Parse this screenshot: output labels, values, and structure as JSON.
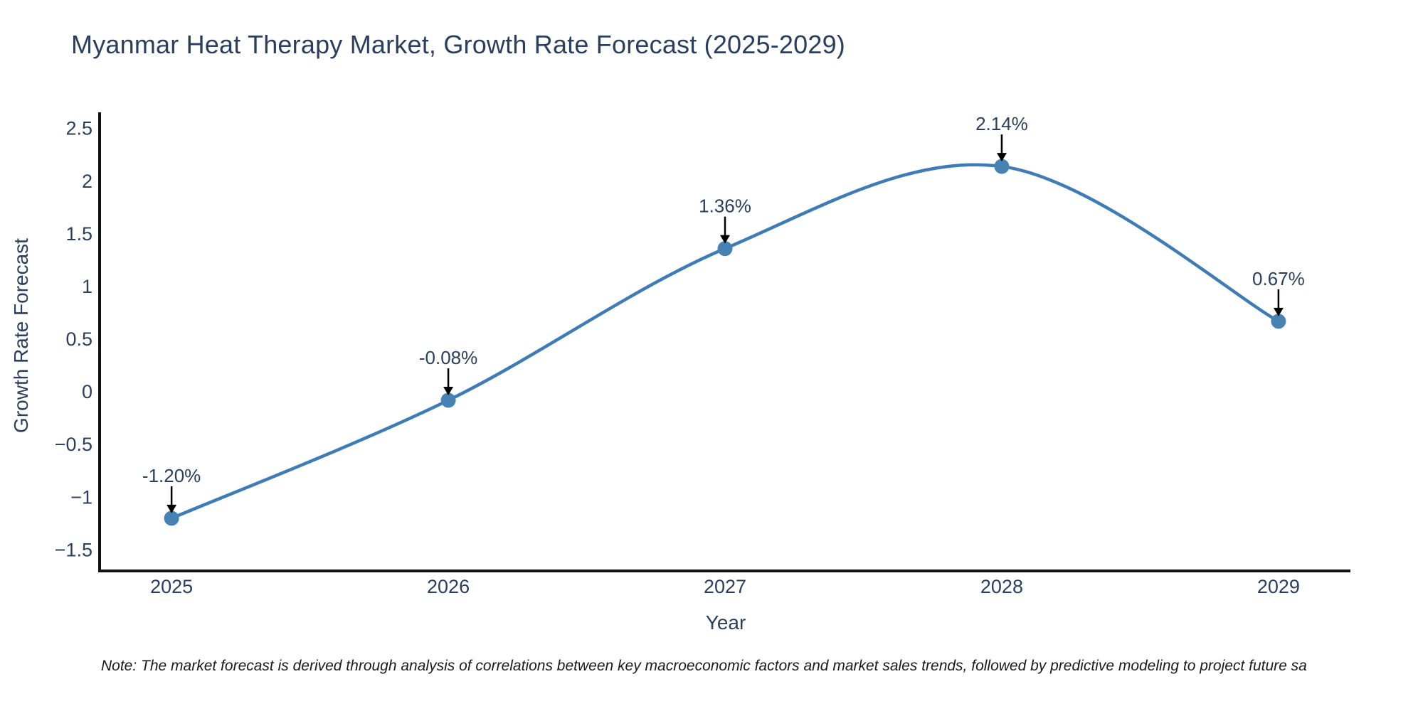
{
  "footnote": "Note: The market forecast is derived through analysis of correlations between key macroeconomic factors and market sales trends, followed by predictive modeling to project future sa",
  "chart_data": {
    "type": "line",
    "title": "Myanmar Heat Therapy Market, Growth Rate Forecast (2025-2029)",
    "xlabel": "Year",
    "ylabel": "Growth Rate Forecast",
    "x": [
      2025,
      2026,
      2027,
      2028,
      2029
    ],
    "x_tick_labels": [
      "2025",
      "2026",
      "2027",
      "2028",
      "2029"
    ],
    "series": [
      {
        "name": "Growth Rate Forecast",
        "values": [
          -1.2,
          -0.08,
          1.36,
          2.14,
          0.67
        ]
      }
    ],
    "point_labels": [
      "-1.20%",
      "-0.08%",
      "1.36%",
      "2.14%",
      "0.67%"
    ],
    "y_ticks": [
      -1.5,
      -1,
      -0.5,
      0,
      0.5,
      1,
      1.5,
      2,
      2.5
    ],
    "y_tick_labels": [
      "−1.5",
      "−1",
      "−0.5",
      "0",
      "0.5",
      "1",
      "1.5",
      "2",
      "2.5"
    ],
    "xlim": [
      2024.74,
      2029.26
    ],
    "ylim": [
      -1.7,
      2.64
    ],
    "grid": false,
    "legend": "none",
    "line_shape": "spline",
    "annotation_style": "arrow-down-to-point",
    "colors": {
      "line": "#3E7CB7",
      "marker": "#4682B4",
      "axis": "#111111",
      "tick_text": "#2a3f5f",
      "annotation_text": "#2a3f5f",
      "annotation_arrow": "#000000"
    }
  }
}
